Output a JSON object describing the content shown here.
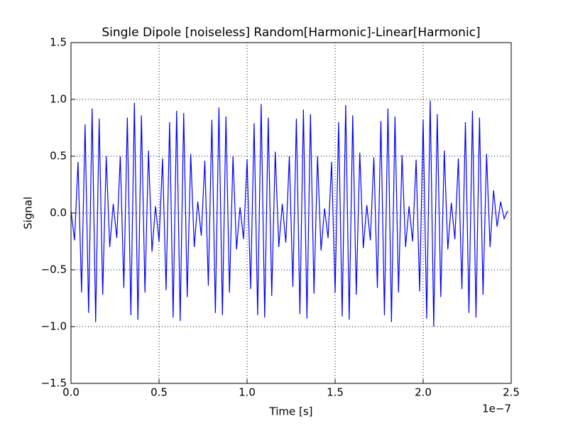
{
  "chart_data": {
    "type": "line",
    "title": "Single Dipole [noiseless] Random[Harmonic]-Linear[Harmonic]",
    "xlabel": "Time [s]",
    "ylabel": "Signal",
    "x_offset_label": "1e−7",
    "x": [
      0,
      0.02,
      0.04,
      0.06,
      0.08,
      0.1,
      0.12,
      0.14,
      0.16,
      0.18,
      0.2,
      0.22,
      0.24,
      0.26,
      0.28,
      0.3,
      0.32,
      0.34,
      0.36,
      0.38,
      0.4,
      0.42,
      0.44,
      0.46,
      0.48,
      0.5,
      0.52,
      0.54,
      0.56,
      0.58,
      0.6,
      0.62,
      0.64,
      0.66,
      0.68,
      0.7,
      0.72,
      0.74,
      0.76,
      0.78,
      0.8,
      0.82,
      0.84,
      0.86,
      0.88,
      0.9,
      0.92,
      0.94,
      0.96,
      0.98,
      1.0,
      1.02,
      1.04,
      1.06,
      1.08,
      1.1,
      1.12,
      1.14,
      1.16,
      1.18,
      1.2,
      1.22,
      1.24,
      1.26,
      1.28,
      1.3,
      1.32,
      1.34,
      1.36,
      1.38,
      1.4,
      1.42,
      1.44,
      1.46,
      1.48,
      1.5,
      1.52,
      1.54,
      1.56,
      1.58,
      1.6,
      1.62,
      1.64,
      1.66,
      1.68,
      1.7,
      1.72,
      1.74,
      1.76,
      1.78,
      1.8,
      1.82,
      1.84,
      1.86,
      1.88,
      1.9,
      1.92,
      1.94,
      1.96,
      1.98,
      2.0,
      2.02,
      2.04,
      2.06,
      2.08,
      2.1,
      2.12,
      2.14,
      2.16,
      2.18,
      2.2,
      2.22,
      2.24,
      2.26,
      2.28,
      2.3,
      2.32,
      2.34,
      2.36,
      2.38,
      2.4,
      2.42,
      2.44,
      2.46,
      2.48
    ],
    "series": [
      {
        "color": "#0000ff",
        "values": [
          0.02,
          -0.24,
          0.45,
          -0.7,
          0.78,
          -0.88,
          0.92,
          -0.96,
          0.83,
          -0.72,
          0.5,
          -0.3,
          0.08,
          -0.22,
          0.5,
          -0.66,
          0.84,
          -0.9,
          0.97,
          -0.94,
          0.86,
          -0.7,
          0.55,
          -0.34,
          0.06,
          -0.25,
          0.48,
          -0.68,
          0.8,
          -0.92,
          0.9,
          -0.95,
          0.88,
          -0.74,
          0.52,
          -0.3,
          0.1,
          -0.2,
          0.46,
          -0.64,
          0.82,
          -0.88,
          0.93,
          -0.9,
          0.85,
          -0.7,
          0.5,
          -0.32,
          0.05,
          -0.23,
          0.47,
          -0.67,
          0.79,
          -0.9,
          0.96,
          -0.92,
          0.84,
          -0.73,
          0.54,
          -0.3,
          0.08,
          -0.26,
          0.5,
          -0.65,
          0.83,
          -0.89,
          0.91,
          -0.93,
          0.87,
          -0.71,
          0.5,
          -0.33,
          0.04,
          -0.22,
          0.45,
          -0.7,
          0.8,
          -0.91,
          0.95,
          -0.94,
          0.86,
          -0.72,
          0.53,
          -0.31,
          0.07,
          -0.24,
          0.49,
          -0.66,
          0.81,
          -0.9,
          0.92,
          -0.96,
          0.85,
          -0.7,
          0.51,
          -0.3,
          0.06,
          -0.25,
          0.47,
          -0.69,
          0.82,
          -0.93,
          0.99,
          -1.0,
          0.87,
          -0.74,
          0.55,
          -0.32,
          0.09,
          -0.23,
          0.48,
          -0.67,
          0.8,
          -0.88,
          0.9,
          -0.92,
          0.84,
          -0.72,
          0.52,
          -0.3,
          0.2,
          -0.12,
          0.1,
          -0.05,
          0.02
        ]
      }
    ],
    "xlim": [
      0,
      2.5
    ],
    "xticks": [
      {
        "value": 0,
        "label": "0.0"
      },
      0.5,
      {
        "value": 1,
        "label": "1.0"
      },
      1.5,
      {
        "value": 2,
        "label": "2.0"
      },
      2.5
    ],
    "ylim": [
      -1.5,
      1.5
    ],
    "yticks": [
      {
        "value": -1.5,
        "label": "−1.5"
      },
      {
        "value": -1,
        "label": "−1.0"
      },
      {
        "value": -0.5,
        "label": "−0.5"
      },
      {
        "value": 0,
        "label": "0.0"
      },
      0.5,
      {
        "value": 1,
        "label": "1.0"
      },
      1.5
    ],
    "grid": true
  }
}
